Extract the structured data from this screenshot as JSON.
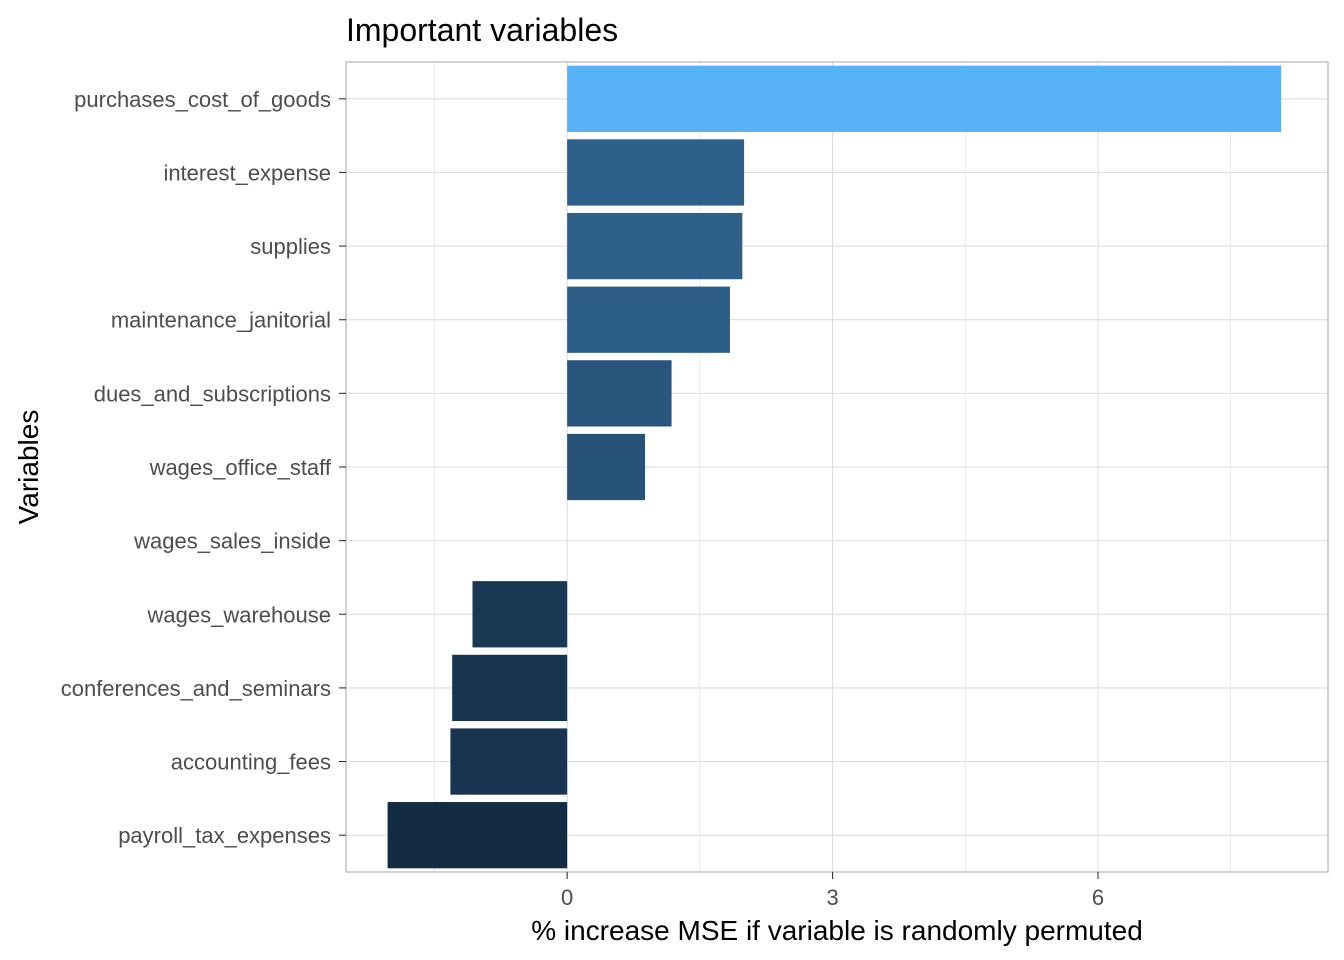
{
  "chart_data": {
    "type": "bar",
    "orientation": "horizontal",
    "title": "Important variables",
    "xlabel": "% increase MSE if variable is randomly permuted",
    "ylabel": "Variables",
    "categories": [
      "purchases_cost_of_goods",
      "interest_expense",
      "supplies",
      "maintenance_janitorial",
      "dues_and_subscriptions",
      "wages_office_staff",
      "wages_sales_inside",
      "wages_warehouse",
      "conferences_and_seminars",
      "accounting_fees",
      "payroll_tax_expenses"
    ],
    "values": [
      8.07,
      2.0,
      1.98,
      1.84,
      1.18,
      0.88,
      0.0,
      -1.07,
      -1.3,
      -1.32,
      -2.03
    ],
    "xlim": [
      -2.5,
      8.6
    ],
    "xticks": [
      0,
      3,
      6
    ],
    "xtick_labels": [
      "0",
      "3",
      "6"
    ],
    "grid": true,
    "legend": "none",
    "color_scale": {
      "low": "#132B43",
      "high": "#56B1F7"
    },
    "panel_border": "#b3b3b3",
    "grid_color": "#dedede",
    "background": "#ffffff"
  }
}
